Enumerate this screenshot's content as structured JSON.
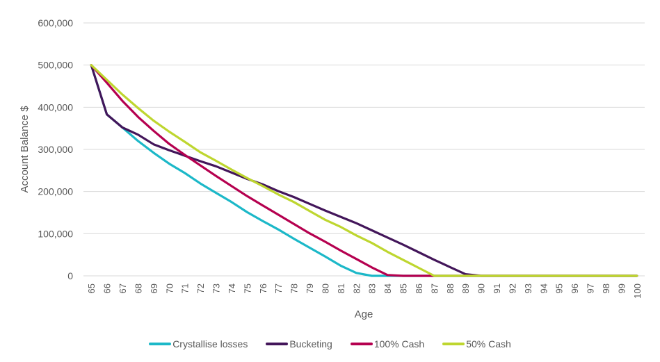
{
  "chart_data": {
    "type": "line",
    "title": "",
    "xlabel": "Age",
    "ylabel": "Account Balance $",
    "ylim": [
      0,
      600000
    ],
    "yticks": [
      "0",
      "100,000",
      "200,000",
      "300,000",
      "400,000",
      "500,000",
      "600,000"
    ],
    "ytick_values": [
      0,
      100000,
      200000,
      300000,
      400000,
      500000,
      600000
    ],
    "grid": true,
    "legend_position": "bottom",
    "x": [
      "65",
      "66",
      "67",
      "68",
      "69",
      "70",
      "71",
      "72",
      "73",
      "74",
      "75",
      "76",
      "77",
      "78",
      "79",
      "80",
      "81",
      "82",
      "83",
      "84",
      "85",
      "86",
      "87",
      "88",
      "89",
      "90",
      "91",
      "92",
      "93",
      "94",
      "95",
      "96",
      "97",
      "98",
      "99",
      "100"
    ],
    "series": [
      {
        "name": "Crystallise losses",
        "color": "#1CB8C8",
        "values": [
          500000,
          383000,
          352000,
          320000,
          292000,
          266000,
          244000,
          219000,
          197000,
          175000,
          151000,
          130000,
          110000,
          88000,
          67000,
          46000,
          24000,
          7000,
          0,
          0,
          0,
          0,
          0,
          0,
          0,
          0,
          0,
          0,
          0,
          0,
          0,
          0,
          0,
          0,
          0,
          0
        ]
      },
      {
        "name": "Bucketing",
        "color": "#43165A",
        "values": [
          500000,
          383000,
          352000,
          335000,
          312000,
          298000,
          285000,
          272000,
          260000,
          245000,
          230000,
          217000,
          201000,
          187000,
          171000,
          155000,
          140000,
          125000,
          108000,
          91000,
          74000,
          56000,
          38000,
          21000,
          4000,
          0,
          0,
          0,
          0,
          0,
          0,
          0,
          0,
          0,
          0,
          0
        ]
      },
      {
        "name": "100% Cash",
        "color": "#B5004F",
        "values": [
          500000,
          458000,
          415000,
          377000,
          344000,
          313000,
          287000,
          262000,
          237000,
          213000,
          189000,
          167000,
          145000,
          123000,
          101000,
          81000,
          60000,
          40000,
          20000,
          2000,
          0,
          0,
          0,
          0,
          0,
          0,
          0,
          0,
          0,
          0,
          0,
          0,
          0,
          0,
          0,
          0
        ]
      },
      {
        "name": "50% Cash",
        "color": "#BED62F",
        "values": [
          500000,
          465000,
          430000,
          398000,
          368000,
          342000,
          318000,
          293000,
          273000,
          252000,
          232000,
          213000,
          193000,
          175000,
          154000,
          133000,
          116000,
          96000,
          78000,
          57000,
          38000,
          19000,
          0,
          0,
          0,
          0,
          0,
          0,
          0,
          0,
          0,
          0,
          0,
          0,
          0,
          0
        ]
      }
    ]
  }
}
